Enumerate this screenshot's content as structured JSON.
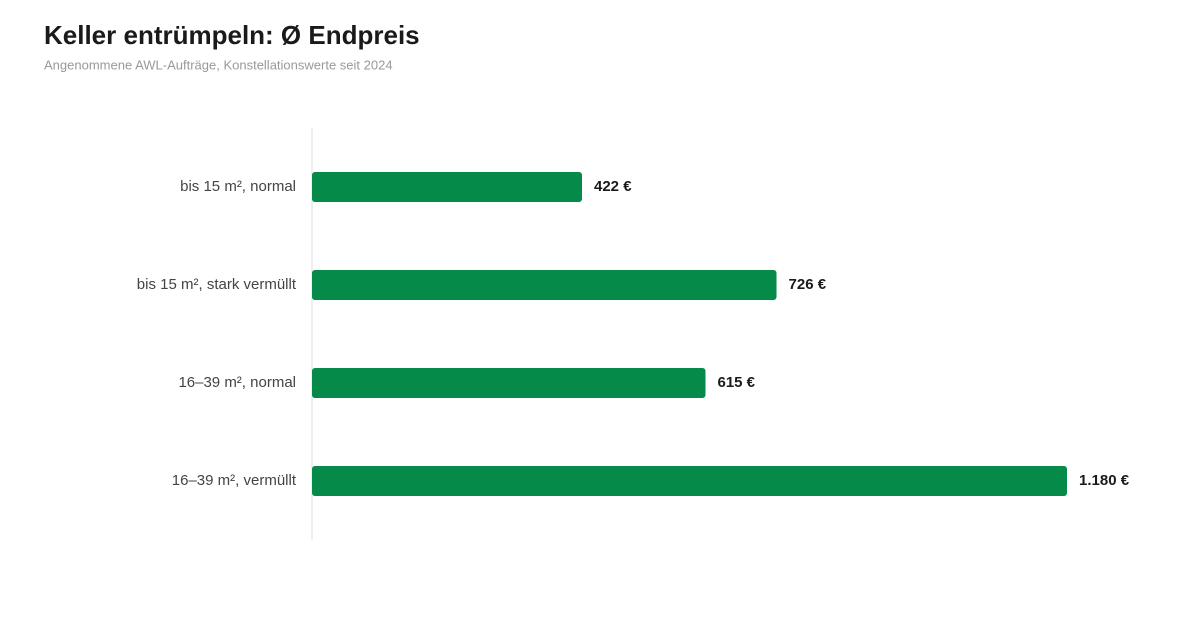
{
  "chart_data": {
    "type": "bar",
    "title": "Keller entrümpeln: Ø Endpreis",
    "subtitle": "Angenommene AWL-Aufträge, Konstellationswerte seit 2024",
    "categories": [
      "bis 15 m², normal",
      "bis 15 m², stark vermüllt",
      "16–39 m², normal",
      "16–39 m², vermüllt"
    ],
    "values": [
      422,
      726,
      615,
      1180
    ],
    "value_labels": [
      "422 €",
      "726 €",
      "615 €",
      "1.180 €"
    ],
    "color": "#068a4a"
  }
}
